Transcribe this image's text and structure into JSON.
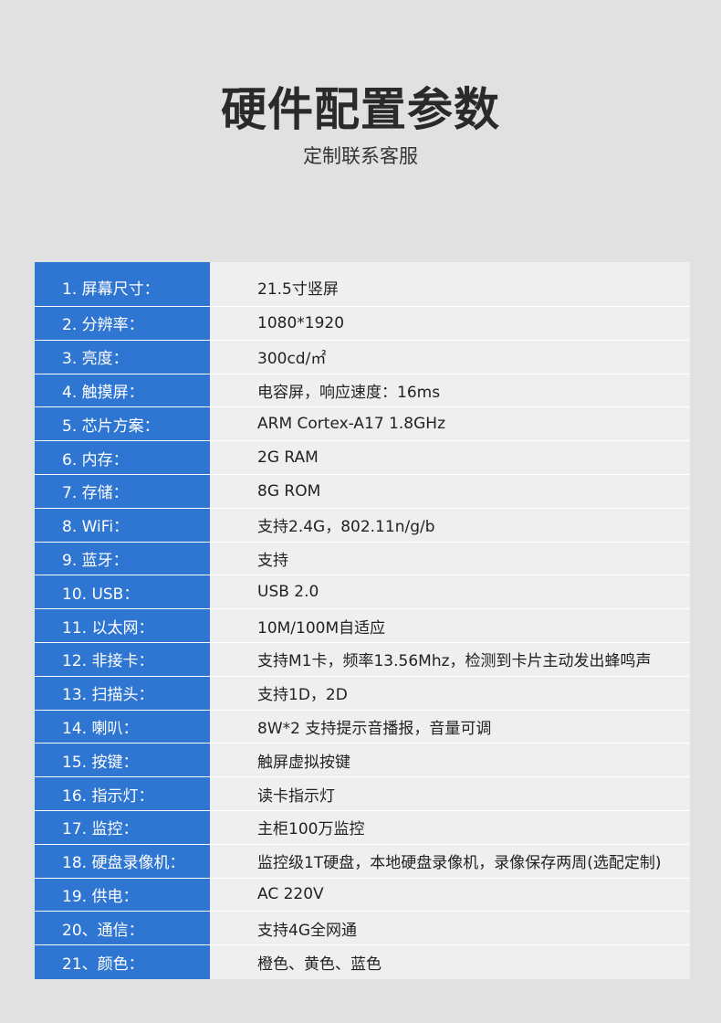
{
  "title": "硬件配置参数",
  "subtitle": "定制联系客服",
  "specs": [
    {
      "label": "1. 屏幕尺寸：",
      "value": "21.5寸竖屏"
    },
    {
      "label": "2. 分辨率：",
      "value": "1080*1920"
    },
    {
      "label": "3. 亮度：",
      "value": "300cd/㎡"
    },
    {
      "label": "4. 触摸屏：",
      "value": "电容屏，响应速度：16ms"
    },
    {
      "label": "5. 芯片方案：",
      "value": "ARM Cortex-A17 1.8GHz"
    },
    {
      "label": "6. 内存：",
      "value": "2G RAM"
    },
    {
      "label": "7. 存储：",
      "value": "8G ROM"
    },
    {
      "label": "8. WiFi：",
      "value": "支持2.4G，802.11n/g/b"
    },
    {
      "label": "9. 蓝牙：",
      "value": "支持"
    },
    {
      "label": "10. USB：",
      "value": "USB 2.0"
    },
    {
      "label": "11. 以太网：",
      "value": "10M/100M自适应"
    },
    {
      "label": "12. 非接卡：",
      "value": "支持M1卡，频率13.56Mhz，检测到卡片主动发出蜂鸣声"
    },
    {
      "label": "13. 扫描头：",
      "value": "支持1D，2D"
    },
    {
      "label": "14. 喇叭：",
      "value": "8W*2 支持提示音播报，音量可调"
    },
    {
      "label": "15. 按键：",
      "value": "触屏虚拟按键"
    },
    {
      "label": "16. 指示灯：",
      "value": "读卡指示灯"
    },
    {
      "label": "17. 监控：",
      "value": "主柜100万监控"
    },
    {
      "label": "18. 硬盘录像机：",
      "value": "监控级1T硬盘，本地硬盘录像机，录像保存两周(选配定制)"
    },
    {
      "label": "19. 供电：",
      "value": "AC 220V"
    },
    {
      "label": "20、通信：",
      "value": "支持4G全网通"
    },
    {
      "label": "21、颜色：",
      "value": "橙色、黄色、蓝色"
    }
  ]
}
